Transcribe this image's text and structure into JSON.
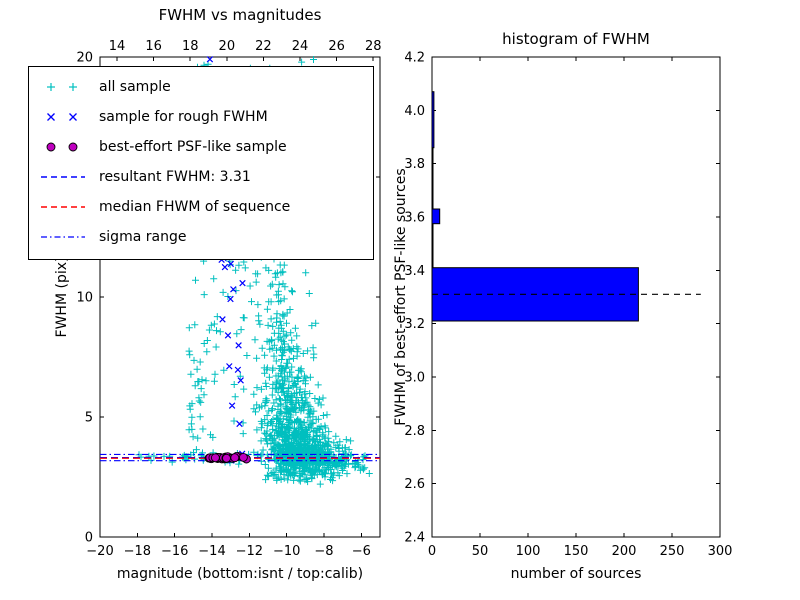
{
  "figure": {
    "background": "#ffffff"
  },
  "colors": {
    "all_sample": "#00bfbf",
    "rough_sample": "#0000ff",
    "psf_sample": "#bf00bf",
    "psf_edge": "#000000",
    "resultant_line": "#0000ff",
    "median_line": "#ff0000",
    "sigma_line": "#0000ff",
    "hist_bar": "#0000ff",
    "hist_median_line": "#000000",
    "axis": "#000000"
  },
  "legend": {
    "items": [
      {
        "label": "all sample",
        "marker": "plus"
      },
      {
        "label": "sample for rough FWHM",
        "marker": "x"
      },
      {
        "label": "best-effort PSF-like sample",
        "marker": "circle"
      },
      {
        "label": "resultant FWHM: 3.31",
        "marker": "dashed-blue"
      },
      {
        "label": "median FHWM of sequence",
        "marker": "dashed-red"
      },
      {
        "label": "sigma range",
        "marker": "dashdot-blue"
      }
    ]
  },
  "chart_data": [
    {
      "type": "scatter",
      "title": "FWHM vs magnitudes",
      "xlabel": "magnitude (bottom:isnt / top:calib)",
      "ylabel": "FWHM (pix)",
      "xlim": [
        -20,
        -5
      ],
      "ylim": [
        0,
        20
      ],
      "grid": false,
      "legend_position": "upper left",
      "x_ticks_bottom": [
        {
          "v": -20,
          "label": "−20"
        },
        {
          "v": -18,
          "label": "−18"
        },
        {
          "v": -16,
          "label": "−16"
        },
        {
          "v": -14,
          "label": "−14"
        },
        {
          "v": -12,
          "label": "−12"
        },
        {
          "v": -10,
          "label": "−10"
        },
        {
          "v": -8,
          "label": "−8"
        },
        {
          "v": -6,
          "label": "−6"
        }
      ],
      "x_ticks_top": {
        "lim": [
          13.07,
          28.37
        ],
        "ticks": [
          {
            "v": 14,
            "label": "14"
          },
          {
            "v": 16,
            "label": "16"
          },
          {
            "v": 18,
            "label": "18"
          },
          {
            "v": 20,
            "label": "20"
          },
          {
            "v": 22,
            "label": "22"
          },
          {
            "v": 24,
            "label": "24"
          },
          {
            "v": 26,
            "label": "26"
          },
          {
            "v": 28,
            "label": "28"
          }
        ]
      },
      "y_ticks": [
        {
          "v": 0,
          "label": "0"
        },
        {
          "v": 5,
          "label": "5"
        },
        {
          "v": 10,
          "label": "10"
        },
        {
          "v": 15,
          "label": "15"
        },
        {
          "v": 20,
          "label": "20"
        }
      ],
      "lines": [
        {
          "name": "resultant FWHM",
          "y": 3.31,
          "style": "dashed",
          "color_key": "resultant_line"
        },
        {
          "name": "median FWHM of sequence",
          "y": 3.28,
          "style": "dashed",
          "color_key": "median_line"
        },
        {
          "name": "sigma range upper",
          "y": 3.44,
          "style": "dashdot",
          "color_key": "sigma_line"
        },
        {
          "name": "sigma range lower",
          "y": 3.18,
          "style": "dashdot",
          "color_key": "sigma_line"
        }
      ],
      "seed": 11,
      "series": [
        {
          "name": "all sample",
          "marker": "plus",
          "color_key": "all_sample",
          "clusters": [
            {
              "type": "gauss",
              "count": 520,
              "cx": -9.3,
              "cy": 3.5,
              "sx": 0.9,
              "sy": 0.55,
              "ymin": 2.3
            },
            {
              "type": "gauss",
              "count": 300,
              "cx": -9.7,
              "cy": 4.8,
              "sx": 0.75,
              "sy": 1.1,
              "ymin": 2.5
            },
            {
              "type": "gauss",
              "count": 140,
              "cx": -10.2,
              "cy": 7.2,
              "sx": 0.6,
              "sy": 1.8,
              "ymin": 3.0
            },
            {
              "type": "gauss",
              "count": 60,
              "cx": -10.6,
              "cy": 11.0,
              "sx": 0.5,
              "sy": 2.2,
              "ymin": 5.0
            },
            {
              "type": "gauss",
              "count": 130,
              "cx": -7.6,
              "cy": 3.1,
              "sx": 0.9,
              "sy": 0.35,
              "ymin": 2.2
            },
            {
              "type": "uniform",
              "count": 45,
              "x": [
                -15.3,
                -13.6
              ],
              "y": [
                3.0,
                9.0
              ]
            },
            {
              "type": "uniform",
              "count": 32,
              "x": [
                -15.1,
                -13.7
              ],
              "y": [
                9.0,
                20.0
              ]
            },
            {
              "type": "uniform",
              "count": 55,
              "x": [
                -15.0,
                -7.0
              ],
              "y": [
                12.0,
                20.0
              ]
            },
            {
              "type": "uniform",
              "count": 40,
              "x": [
                -13.6,
                -11.3
              ],
              "y": [
                4.5,
                12.0
              ]
            },
            {
              "type": "gauss",
              "count": 12,
              "cx": -17.0,
              "cy": 3.3,
              "sx": 1.4,
              "sy": 0.07
            },
            {
              "type": "gauss",
              "count": 30,
              "cx": -14.0,
              "cy": 3.3,
              "sx": 1.2,
              "sy": 0.12
            }
          ]
        },
        {
          "name": "sample for rough FWHM",
          "marker": "x",
          "color_key": "rough_sample",
          "clusters": [
            {
              "type": "band",
              "count": 30,
              "x0": -14.3,
              "y0": 19.5,
              "x1": -12.4,
              "y1": 5.0,
              "jx": 0.28,
              "jy": 1.0
            },
            {
              "type": "gauss",
              "count": 4,
              "cx": -13.1,
              "cy": 3.35,
              "sx": 0.5,
              "sy": 0.08
            }
          ]
        },
        {
          "name": "best-effort PSF-like sample",
          "marker": "circle",
          "color_key": "psf_sample",
          "clusters": [
            {
              "type": "uniform",
              "count": 26,
              "x": [
                -14.35,
                -12.15
              ],
              "y": [
                3.25,
                3.36
              ]
            }
          ]
        }
      ]
    },
    {
      "type": "bar",
      "orientation": "horizontal",
      "title": "histogram of FWHM",
      "xlabel": "number of sources",
      "ylabel": "FWHM of best-effort PSF-like sources",
      "xlim": [
        0,
        300
      ],
      "ylim": [
        2.4,
        4.2
      ],
      "grid": false,
      "x_ticks": [
        {
          "v": 0,
          "label": "0"
        },
        {
          "v": 50,
          "label": "50"
        },
        {
          "v": 100,
          "label": "100"
        },
        {
          "v": 150,
          "label": "150"
        },
        {
          "v": 200,
          "label": "200"
        },
        {
          "v": 250,
          "label": "250"
        },
        {
          "v": 300,
          "label": "300"
        }
      ],
      "y_ticks": [
        {
          "v": 2.4,
          "label": "2.4"
        },
        {
          "v": 2.6,
          "label": "2.6"
        },
        {
          "v": 2.8,
          "label": "2.8"
        },
        {
          "v": 3.0,
          "label": "3.0"
        },
        {
          "v": 3.2,
          "label": "3.2"
        },
        {
          "v": 3.4,
          "label": "3.4"
        },
        {
          "v": 3.6,
          "label": "3.6"
        },
        {
          "v": 3.8,
          "label": "3.8"
        },
        {
          "v": 4.0,
          "label": "4.0"
        },
        {
          "v": 4.2,
          "label": "4.2"
        }
      ],
      "bins": [
        {
          "y0": 3.21,
          "y1": 3.41,
          "count": 215
        },
        {
          "y0": 3.41,
          "y1": 3.575,
          "count": 1
        },
        {
          "y0": 3.575,
          "y1": 3.63,
          "count": 8
        },
        {
          "y0": 3.63,
          "y1": 3.86,
          "count": 1
        },
        {
          "y0": 3.86,
          "y1": 4.07,
          "count": 2
        }
      ],
      "median_line": {
        "y": 3.31,
        "x_start": 0,
        "x_end": 280,
        "style": "dashed"
      }
    }
  ]
}
